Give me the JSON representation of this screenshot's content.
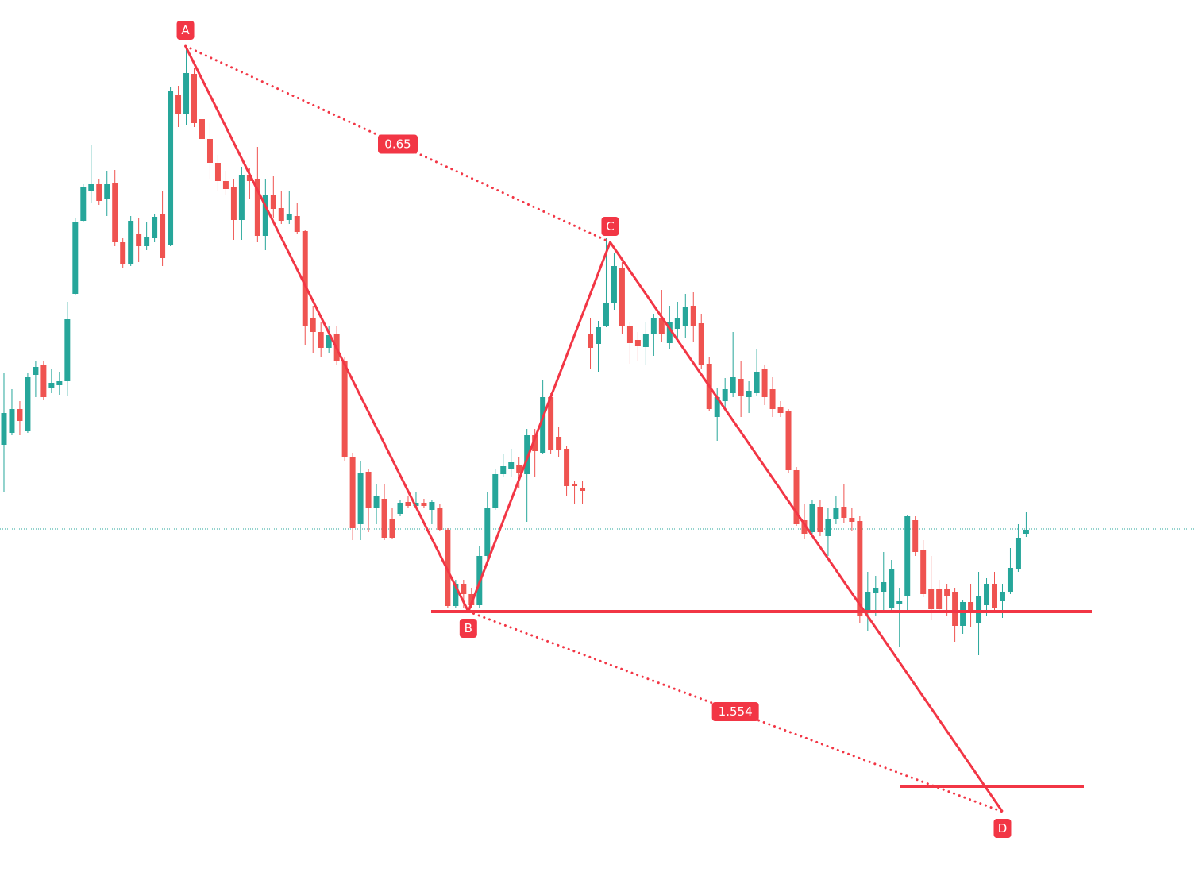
{
  "chart_data": {
    "type": "candlestick",
    "up_color": "#26a69a",
    "down_color": "#ef5350",
    "xlim": [
      -0.5,
      150.3
    ],
    "ylim": [
      0,
      1100
    ],
    "price_line": 434,
    "price_line_color": "#26a69a",
    "ohlc": [
      [
        540,
        630,
        480,
        580
      ],
      [
        555,
        610,
        552,
        585
      ],
      [
        585,
        595,
        552,
        570
      ],
      [
        557,
        630,
        555,
        625
      ],
      [
        628,
        645,
        600,
        638
      ],
      [
        640,
        645,
        597,
        600
      ],
      [
        612,
        635,
        605,
        618
      ],
      [
        615,
        632,
        603,
        620
      ],
      [
        620,
        720,
        602,
        698
      ],
      [
        730,
        825,
        728,
        820
      ],
      [
        822,
        868,
        820,
        864
      ],
      [
        860,
        918,
        845,
        868
      ],
      [
        868,
        875,
        842,
        847
      ],
      [
        850,
        885,
        828,
        868
      ],
      [
        870,
        886,
        790,
        795
      ],
      [
        795,
        800,
        763,
        767
      ],
      [
        768,
        828,
        765,
        822
      ],
      [
        805,
        825,
        770,
        790
      ],
      [
        790,
        820,
        785,
        802
      ],
      [
        800,
        830,
        795,
        827
      ],
      [
        830,
        860,
        765,
        775
      ],
      [
        792,
        990,
        790,
        985
      ],
      [
        980,
        992,
        940,
        957
      ],
      [
        957,
        1040,
        942,
        1008
      ],
      [
        1007,
        1015,
        940,
        945
      ],
      [
        950,
        955,
        900,
        925
      ],
      [
        925,
        945,
        875,
        895
      ],
      [
        895,
        905,
        860,
        872
      ],
      [
        872,
        885,
        855,
        862
      ],
      [
        864,
        875,
        798,
        823
      ],
      [
        823,
        890,
        798,
        880
      ],
      [
        880,
        888,
        850,
        872
      ],
      [
        875,
        915,
        795,
        803
      ],
      [
        803,
        875,
        785,
        855
      ],
      [
        855,
        878,
        825,
        837
      ],
      [
        838,
        860,
        818,
        822
      ],
      [
        823,
        860,
        818,
        830
      ],
      [
        828,
        845,
        805,
        808
      ],
      [
        809,
        810,
        665,
        690
      ],
      [
        700,
        715,
        655,
        682
      ],
      [
        682,
        695,
        650,
        662
      ],
      [
        662,
        690,
        655,
        678
      ],
      [
        680,
        690,
        640,
        645
      ],
      [
        645,
        650,
        520,
        524
      ],
      [
        524,
        530,
        420,
        435
      ],
      [
        440,
        520,
        420,
        505
      ],
      [
        506,
        510,
        430,
        460
      ],
      [
        460,
        490,
        440,
        475
      ],
      [
        472,
        490,
        420,
        423
      ],
      [
        447,
        460,
        422,
        423
      ],
      [
        453,
        470,
        450,
        467
      ],
      [
        468,
        475,
        460,
        463
      ],
      [
        463,
        480,
        460,
        467
      ],
      [
        467,
        472,
        460,
        463
      ],
      [
        458,
        470,
        440,
        468
      ],
      [
        460,
        465,
        432,
        433
      ],
      [
        433,
        435,
        335,
        337
      ],
      [
        337,
        370,
        335,
        365
      ],
      [
        365,
        370,
        335,
        352
      ],
      [
        352,
        360,
        334,
        338
      ],
      [
        338,
        412,
        334,
        400
      ],
      [
        400,
        480,
        395,
        460
      ],
      [
        460,
        510,
        458,
        503
      ],
      [
        503,
        528,
        500,
        513
      ],
      [
        510,
        535,
        500,
        518
      ],
      [
        515,
        525,
        485,
        505
      ],
      [
        503,
        560,
        443,
        552
      ],
      [
        552,
        560,
        500,
        532
      ],
      [
        530,
        622,
        528,
        600
      ],
      [
        600,
        605,
        528,
        533
      ],
      [
        550,
        562,
        525,
        534
      ],
      [
        535,
        538,
        475,
        488
      ],
      [
        491,
        495,
        465,
        488
      ],
      [
        485,
        495,
        465,
        482
      ],
      [
        680,
        700,
        635,
        662
      ],
      [
        667,
        696,
        632,
        688
      ],
      [
        690,
        800,
        688,
        718
      ],
      [
        718,
        782,
        710,
        765
      ],
      [
        763,
        770,
        680,
        690
      ],
      [
        690,
        695,
        642,
        668
      ],
      [
        672,
        682,
        645,
        664
      ],
      [
        663,
        695,
        640,
        679
      ],
      [
        680,
        705,
        652,
        700
      ],
      [
        700,
        735,
        670,
        680
      ],
      [
        668,
        715,
        660,
        695
      ],
      [
        686,
        720,
        675,
        700
      ],
      [
        690,
        730,
        675,
        713
      ],
      [
        715,
        732,
        670,
        690
      ],
      [
        693,
        705,
        635,
        640
      ],
      [
        642,
        650,
        582,
        585
      ],
      [
        575,
        612,
        545,
        600
      ],
      [
        595,
        624,
        585,
        610
      ],
      [
        605,
        682,
        600,
        625
      ],
      [
        623,
        645,
        575,
        602
      ],
      [
        600,
        620,
        580,
        608
      ],
      [
        605,
        660,
        602,
        632
      ],
      [
        635,
        640,
        590,
        600
      ],
      [
        610,
        625,
        575,
        585
      ],
      [
        587,
        595,
        575,
        580
      ],
      [
        582,
        585,
        505,
        508
      ],
      [
        508,
        512,
        438,
        440
      ],
      [
        445,
        465,
        422,
        428
      ],
      [
        430,
        470,
        428,
        465
      ],
      [
        462,
        470,
        425,
        430
      ],
      [
        425,
        460,
        400,
        447
      ],
      [
        447,
        475,
        440,
        460
      ],
      [
        462,
        490,
        442,
        448
      ],
      [
        448,
        460,
        432,
        443
      ],
      [
        444,
        450,
        315,
        325
      ],
      [
        332,
        380,
        305,
        355
      ],
      [
        353,
        375,
        325,
        360
      ],
      [
        355,
        405,
        330,
        367
      ],
      [
        335,
        395,
        330,
        383
      ],
      [
        340,
        360,
        285,
        343
      ],
      [
        350,
        452,
        332,
        450
      ],
      [
        445,
        450,
        400,
        405
      ],
      [
        407,
        420,
        348,
        352
      ],
      [
        358,
        400,
        320,
        333
      ],
      [
        358,
        370,
        330,
        333
      ],
      [
        358,
        365,
        325,
        350
      ],
      [
        355,
        360,
        292,
        312
      ],
      [
        312,
        345,
        302,
        342
      ],
      [
        342,
        365,
        310,
        332
      ],
      [
        315,
        380,
        275,
        350
      ],
      [
        338,
        372,
        325,
        365
      ],
      [
        365,
        380,
        332,
        335
      ],
      [
        343,
        365,
        322,
        355
      ],
      [
        355,
        410,
        352,
        385
      ],
      [
        383,
        440,
        380,
        423
      ],
      [
        428,
        455,
        424,
        433
      ]
    ],
    "pattern": {
      "color": "#f23645",
      "points": [
        {
          "label": "A",
          "x": 22.9,
          "value": 1042
        },
        {
          "label": "B",
          "x": 58.6,
          "value": 330
        },
        {
          "label": "C",
          "x": 76.5,
          "value": 795
        },
        {
          "label": "D",
          "x": 126,
          "value": 78
        }
      ],
      "ratios": [
        0.65,
        1.554
      ],
      "levels": [
        330,
        110
      ]
    }
  }
}
